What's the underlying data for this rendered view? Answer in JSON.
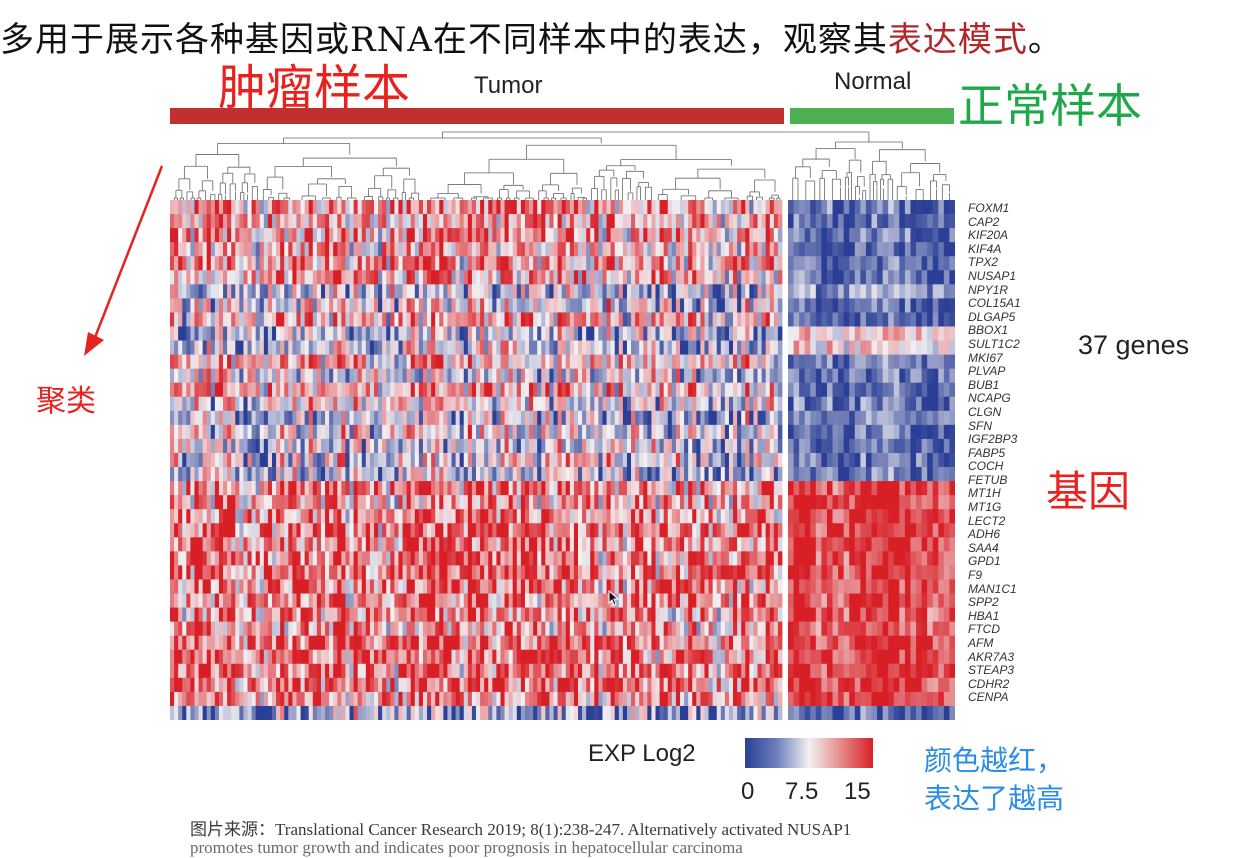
{
  "heading": {
    "text_before": "多用于展示各种基因或RNA在不同样本中的表达，观察其",
    "text_highlight": "表达模式",
    "text_after": "。"
  },
  "annotations": {
    "tumor_sample": "肿瘤样本",
    "normal_sample": "正常样本",
    "clustering": "聚类",
    "genes": "基因",
    "redder_line1": "颜色越红，",
    "redder_line2": "表达了越高"
  },
  "groups": {
    "tumor": {
      "label": "Tumor",
      "color": "#c0302d"
    },
    "normal": {
      "label": "Normal",
      "color": "#4caf50"
    }
  },
  "genes_count_label": "37 genes",
  "genes": [
    "FOXM1",
    "CAP2",
    "KIF20A",
    "KIF4A",
    "TPX2",
    "NUSAP1",
    "NPY1R",
    "COL15A1",
    "DLGAP5",
    "BBOX1",
    "SULT1C2",
    "MKI67",
    "PLVAP",
    "BUB1",
    "NCAPG",
    "CLGN",
    "SFN",
    "IGF2BP3",
    "FABP5",
    "COCH",
    "FETUB",
    "MT1H",
    "MT1G",
    "LECT2",
    "ADH6",
    "SAA4",
    "GPD1",
    "F9",
    "MAN1C1",
    "SPP2",
    "HBA1",
    "FTCD",
    "AFM",
    "AKR7A3",
    "STEAP3",
    "CDHR2",
    "CENPA"
  ],
  "legend": {
    "title": "EXP Log2",
    "ticks": [
      "0",
      "7.5",
      "15"
    ],
    "low_color": "#2a3f95",
    "mid_color": "#f3f0f2",
    "high_color": "#d81f26"
  },
  "caption": {
    "line1": "图片来源：Translational Cancer Research 2019; 8(1):238-247. Alternatively activated NUSAP1",
    "line2": "promotes tumor growth and indicates poor prognosis in hepatocellular carcinoma"
  },
  "heatmap_pattern": {
    "tumor_gene_means": [
      0.72,
      0.66,
      0.68,
      0.62,
      0.7,
      0.64,
      0.4,
      0.44,
      0.62,
      0.38,
      0.4,
      0.62,
      0.46,
      0.64,
      0.48,
      0.38,
      0.46,
      0.42,
      0.44,
      0.4,
      0.74,
      0.7,
      0.74,
      0.8,
      0.78,
      0.82,
      0.8,
      0.78,
      0.76,
      0.72,
      0.7,
      0.84,
      0.82,
      0.78,
      0.8,
      0.76,
      0.32
    ],
    "normal_gene_means": [
      0.15,
      0.12,
      0.12,
      0.14,
      0.18,
      0.15,
      0.3,
      0.1,
      0.14,
      0.6,
      0.56,
      0.22,
      0.18,
      0.12,
      0.16,
      0.2,
      0.16,
      0.14,
      0.16,
      0.18,
      0.92,
      0.92,
      0.94,
      0.96,
      0.94,
      0.94,
      0.92,
      0.94,
      0.92,
      0.9,
      0.9,
      0.96,
      0.96,
      0.94,
      0.94,
      0.94,
      0.12
    ],
    "tumor_columns": 150,
    "normal_columns": 30
  }
}
